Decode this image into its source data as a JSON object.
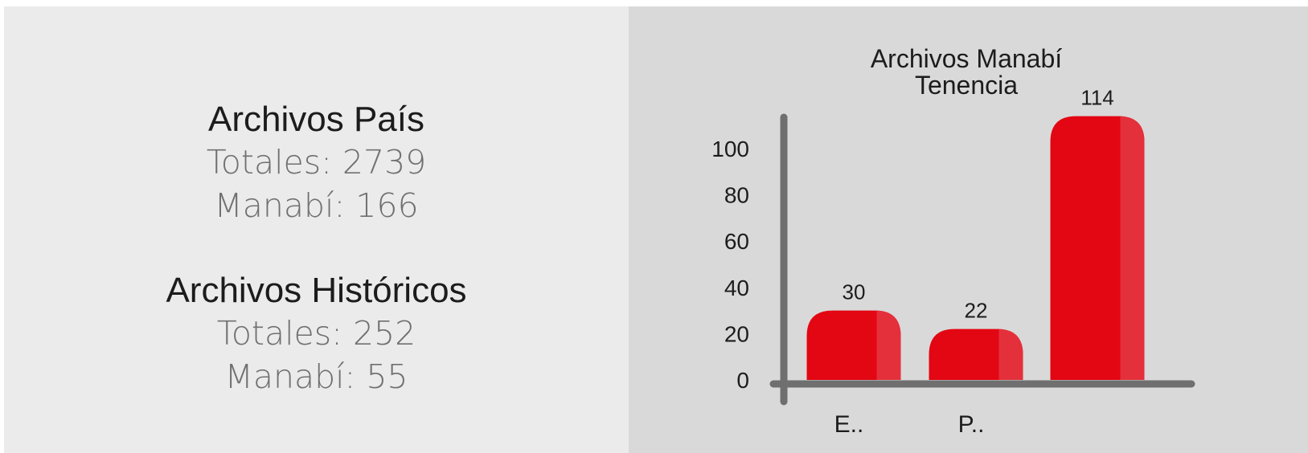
{
  "left_panel": {
    "pais": {
      "title": "Archivos País",
      "totales": "Totales: 2739",
      "manabi": "Manabí: 166"
    },
    "historicos": {
      "title": "Archivos Históricos",
      "totales": "Totales: 252",
      "manabi": "Manabí: 55"
    }
  },
  "colors": {
    "bar": "#e30613",
    "bar_highlight": "#e4303b",
    "axis": "#6f6f6f",
    "left_bg": "#ebebeb",
    "right_bg": "#d9d9d9"
  },
  "chart_data": {
    "type": "bar",
    "title": [
      "Archivos Manabí",
      "Tenencia"
    ],
    "categories": [
      "E..",
      "P..",
      ""
    ],
    "values": [
      30,
      22,
      114
    ],
    "value_labels": [
      "30",
      "22",
      "114"
    ],
    "yticks": [
      "0",
      "20",
      "40",
      "60",
      "80",
      "100"
    ],
    "ytick_values": [
      0,
      20,
      40,
      60,
      80,
      100
    ],
    "ylim": [
      0,
      100
    ],
    "grid": false,
    "legend": "none"
  }
}
